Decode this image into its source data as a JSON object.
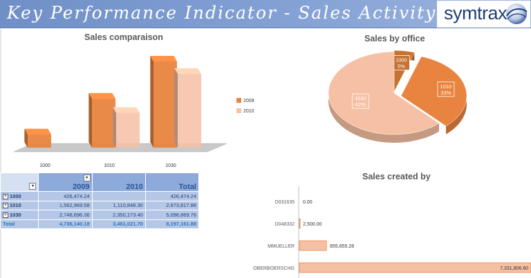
{
  "banner": {
    "title": "Key Performance Indicator - Sales Activity",
    "logo_text": "symtrax",
    "logo_icon": "swirl-globe-icon"
  },
  "colors": {
    "series_2009": "#e8843f",
    "series_2010": "#f6c0a4",
    "banner": "#7c9ad1",
    "pivot_header": "#8eaadb",
    "pivot_row": "#b4c7e7"
  },
  "pivot": {
    "columns": [
      "2009",
      "2010",
      "Total"
    ],
    "rows": [
      {
        "label": "1000",
        "values": [
          "426,474.24",
          "",
          "426,474.24"
        ]
      },
      {
        "label": "1010",
        "values": [
          "1,562,969.58",
          "1,110,848.30",
          "2,673,817.88"
        ]
      },
      {
        "label": "1030",
        "values": [
          "2,746,696.36",
          "2,350,173.40",
          "5,096,869.76"
        ]
      }
    ],
    "total": {
      "label": "Total",
      "values": [
        "4,736,140.18",
        "3,461,021.70",
        "8,197,161.88"
      ]
    }
  },
  "chart_data": [
    {
      "type": "bar",
      "title": "Sales comparaison",
      "categories": [
        "1000",
        "1010",
        "1030"
      ],
      "series": [
        {
          "name": "2009",
          "values": [
            426474.24,
            1562969.58,
            2746696.36
          ]
        },
        {
          "name": "2010",
          "values": [
            0,
            1110848.3,
            2350173.4
          ]
        }
      ],
      "legend": "right",
      "grid": false
    },
    {
      "type": "pie",
      "title": "Sales by office",
      "slices": [
        {
          "label": "1000",
          "pct_label": "5%",
          "value": 5
        },
        {
          "label": "1010",
          "pct_label": "33%",
          "value": 33
        },
        {
          "label": "1030",
          "pct_label": "62%",
          "value": 62
        }
      ]
    },
    {
      "type": "bar",
      "orientation": "horizontal",
      "title": "Sales created by",
      "categories": [
        "D031635",
        "D048332",
        "MMUELLER",
        "OBERBOERSCHG"
      ],
      "values": [
        0.0,
        2500.0,
        855855.28,
        7331806.6
      ],
      "value_labels": [
        "0.00",
        "2,500.00",
        "855,855.28",
        "7,331,806.60"
      ],
      "xlim": [
        0,
        7331806.6
      ]
    }
  ]
}
